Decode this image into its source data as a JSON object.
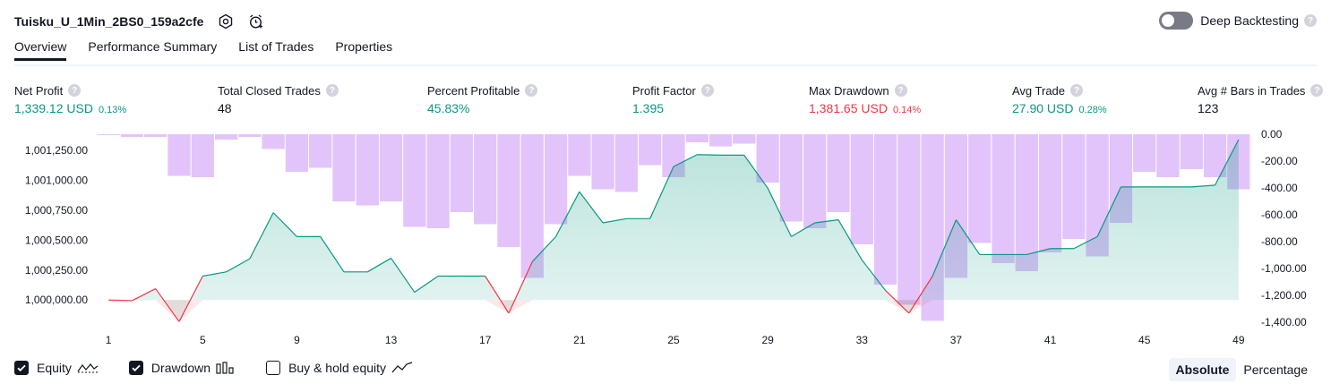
{
  "header": {
    "title": "Tuisku_U_1Min_2BS0_159a2cfe",
    "deep_backtesting_label": "Deep Backtesting",
    "help_glyph": "?"
  },
  "tabs": [
    {
      "label": "Overview"
    },
    {
      "label": "Performance Summary"
    },
    {
      "label": "List of Trades"
    },
    {
      "label": "Properties"
    }
  ],
  "metrics": [
    {
      "label": "Net Profit",
      "value": "1,339.12 USD",
      "pct": "0.13%",
      "color": "#089981"
    },
    {
      "label": "Total Closed Trades",
      "value": "48",
      "pct": "",
      "color": "#131722"
    },
    {
      "label": "Percent Profitable",
      "value": "45.83%",
      "pct": "",
      "color": "#089981"
    },
    {
      "label": "Profit Factor",
      "value": "1.395",
      "pct": "",
      "color": "#089981"
    },
    {
      "label": "Max Drawdown",
      "value": "1,381.65 USD",
      "pct": "0.14%",
      "color": "#f23645"
    },
    {
      "label": "Avg Trade",
      "value": "27.90 USD",
      "pct": "0.28%",
      "color": "#089981"
    },
    {
      "label": "Avg # Bars in Trades",
      "value": "123",
      "pct": "",
      "color": "#131722"
    }
  ],
  "chart_data": {
    "type": "area",
    "x": [
      1,
      2,
      3,
      4,
      5,
      6,
      7,
      8,
      9,
      10,
      11,
      12,
      13,
      14,
      15,
      16,
      17,
      18,
      19,
      20,
      21,
      22,
      23,
      24,
      25,
      26,
      27,
      28,
      29,
      30,
      31,
      32,
      33,
      34,
      35,
      36,
      37,
      38,
      39,
      40,
      41,
      42,
      43,
      44,
      45,
      46,
      47,
      48,
      49
    ],
    "x_ticks": [
      "1",
      "5",
      "9",
      "13",
      "17",
      "21",
      "25",
      "29",
      "33",
      "37",
      "41",
      "45",
      "49"
    ],
    "left_ticks": [
      "1,001,250.00",
      "1,001,000.00",
      "1,000,750.00",
      "1,000,500.00",
      "1,000,250.00",
      "1,000,000.00"
    ],
    "right_ticks": [
      "0.00",
      "-200.00",
      "-400.00",
      "-600.00",
      "-800.00",
      "-1,000.00",
      "-1,200.00",
      "-1,400.00"
    ],
    "left_ylim": [
      999800,
      1001385
    ],
    "right_ylim": [
      -1400,
      0
    ],
    "series": [
      {
        "name": "Equity",
        "axis": "left",
        "color": "#089981",
        "values": [
          1000000,
          999995,
          1000095,
          999820,
          1000200,
          1000235,
          1000345,
          1000730,
          1000530,
          1000530,
          1000235,
          1000235,
          1000350,
          1000065,
          1000200,
          1000200,
          1000200,
          999890,
          1000320,
          1000530,
          1000905,
          1000645,
          1000680,
          1000680,
          1001115,
          1001215,
          1001210,
          1001210,
          1000935,
          1000530,
          1000645,
          1000670,
          1000335,
          1000080,
          999890,
          1000200,
          1000670,
          1000380,
          1000380,
          1000380,
          1000430,
          1000430,
          1000530,
          1000945,
          1000945,
          1000945,
          1000945,
          1000960,
          1001340
        ]
      },
      {
        "name": "Drawdown",
        "axis": "right",
        "color": "#ce93d8",
        "values": [
          0,
          -20,
          -20,
          -310,
          -320,
          -40,
          -20,
          -110,
          -280,
          -250,
          -500,
          -530,
          -500,
          -690,
          -700,
          -580,
          -670,
          -840,
          -1070,
          -670,
          -310,
          -410,
          -430,
          -230,
          -320,
          -60,
          -90,
          -70,
          -360,
          -650,
          -700,
          -580,
          -820,
          -1120,
          -1270,
          -1390,
          -1070,
          -810,
          -960,
          -1020,
          -880,
          -780,
          -910,
          -660,
          -280,
          -320,
          -260,
          -320,
          -410
        ]
      }
    ]
  },
  "legend": {
    "equity_label": "Equity",
    "drawdown_label": "Drawdown",
    "buyhold_label": "Buy & hold equity"
  },
  "modes": {
    "absolute_label": "Absolute",
    "percentage_label": "Percentage"
  }
}
